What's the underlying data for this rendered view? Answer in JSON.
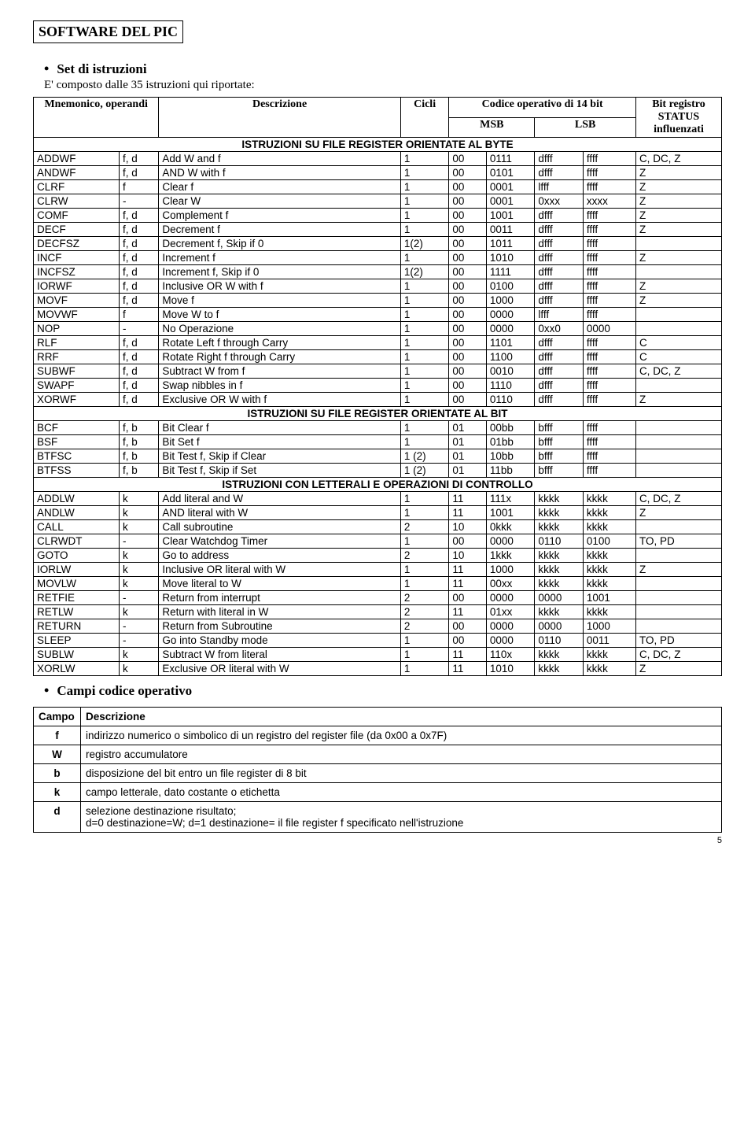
{
  "title": "SOFTWARE DEL PIC",
  "h2_set": "Set di istruzioni",
  "intro": "E' composto dalle 35 istruzioni qui riportate:",
  "hdr": {
    "mnem": "Mnemonico, operandi",
    "desc": "Descrizione",
    "cicli": "Cicli",
    "cod": "Codice operativo di 14 bit",
    "msb": "MSB",
    "lsb": "LSB",
    "stat": "Bit registro STATUS influenzati"
  },
  "sec1": "ISTRUZIONI SU FILE REGISTER ORIENTATE AL BYTE",
  "sec2": "ISTRUZIONI SU FILE REGISTER ORIENTATE AL BIT",
  "sec3": "ISTRUZIONI CON LETTERALI E OPERAZIONI DI CONTROLLO",
  "byte": [
    [
      "ADDWF",
      "f, d",
      "Add W and f",
      "1",
      "00",
      "0111",
      "dfff",
      "ffff",
      "C, DC, Z"
    ],
    [
      "ANDWF",
      "f, d",
      "AND W with f",
      "1",
      "00",
      "0101",
      "dfff",
      "ffff",
      "Z"
    ],
    [
      "CLRF",
      "f",
      "Clear f",
      "1",
      "00",
      "0001",
      "lfff",
      "ffff",
      "Z"
    ],
    [
      "CLRW",
      "-",
      "Clear W",
      "1",
      "00",
      "0001",
      "0xxx",
      "xxxx",
      "Z"
    ],
    [
      "COMF",
      "f, d",
      "Complement f",
      "1",
      "00",
      "1001",
      "dfff",
      "ffff",
      "Z"
    ],
    [
      "DECF",
      "f, d",
      "Decrement f",
      "1",
      "00",
      "0011",
      "dfff",
      "ffff",
      "Z"
    ],
    [
      "DECFSZ",
      "f, d",
      "Decrement f, Skip if 0",
      "1(2)",
      "00",
      "1011",
      "dfff",
      "ffff",
      ""
    ],
    [
      "INCF",
      "f, d",
      "Increment f",
      "1",
      "00",
      "1010",
      "dfff",
      "ffff",
      "Z"
    ],
    [
      "INCFSZ",
      "f, d",
      "Increment f, Skip if 0",
      "1(2)",
      "00",
      "1111",
      "dfff",
      "ffff",
      ""
    ],
    [
      "IORWF",
      "f, d",
      "Inclusive OR W with f",
      "1",
      "00",
      "0100",
      "dfff",
      "ffff",
      "Z"
    ],
    [
      "MOVF",
      "f, d",
      "Move f",
      "1",
      "00",
      "1000",
      "dfff",
      "ffff",
      "Z"
    ],
    [
      "MOVWF",
      "f",
      "Move W to f",
      "1",
      "00",
      "0000",
      "lfff",
      "ffff",
      ""
    ],
    [
      "NOP",
      "-",
      "No Operazione",
      "1",
      "00",
      "0000",
      "0xx0",
      "0000",
      ""
    ],
    [
      "RLF",
      "f, d",
      "Rotate Left f through Carry",
      "1",
      "00",
      "1101",
      "dfff",
      "ffff",
      "C"
    ],
    [
      "RRF",
      "f, d",
      "Rotate Right f through Carry",
      "1",
      "00",
      "1100",
      "dfff",
      "ffff",
      "C"
    ],
    [
      "SUBWF",
      "f, d",
      "Subtract W from f",
      "1",
      "00",
      "0010",
      "dfff",
      "ffff",
      "C, DC, Z"
    ],
    [
      "SWAPF",
      "f, d",
      "Swap nibbles in f",
      "1",
      "00",
      "1110",
      "dfff",
      "ffff",
      ""
    ],
    [
      "XORWF",
      "f, d",
      "Exclusive OR W with f",
      "1",
      "00",
      "0110",
      "dfff",
      "ffff",
      "Z"
    ]
  ],
  "bit": [
    [
      "BCF",
      "f, b",
      "Bit Clear f",
      "1",
      "01",
      "00bb",
      "bfff",
      "ffff",
      ""
    ],
    [
      "BSF",
      "f, b",
      "Bit Set f",
      "1",
      "01",
      "01bb",
      "bfff",
      "ffff",
      ""
    ],
    [
      "BTFSC",
      "f, b",
      "Bit Test f, Skip if Clear",
      "1 (2)",
      "01",
      "10bb",
      "bfff",
      "ffff",
      ""
    ],
    [
      "BTFSS",
      "f, b",
      "Bit Test f, Skip if Set",
      "1 (2)",
      "01",
      "11bb",
      "bfff",
      "ffff",
      ""
    ]
  ],
  "ctrl": [
    [
      "ADDLW",
      "k",
      "Add literal and W",
      "1",
      "11",
      "111x",
      "kkkk",
      "kkkk",
      "C, DC, Z"
    ],
    [
      "ANDLW",
      "k",
      "AND literal with W",
      "1",
      "11",
      "1001",
      "kkkk",
      "kkkk",
      "Z"
    ],
    [
      "CALL",
      "k",
      "Call subroutine",
      "2",
      "10",
      "0kkk",
      "kkkk",
      "kkkk",
      ""
    ],
    [
      "CLRWDT",
      "-",
      "Clear Watchdog Timer",
      "1",
      "00",
      "0000",
      "0110",
      "0100",
      "TO, PD"
    ],
    [
      "GOTO",
      "k",
      "Go to address",
      "2",
      "10",
      "1kkk",
      "kkkk",
      "kkkk",
      ""
    ],
    [
      "IORLW",
      "k",
      "Inclusive OR literal with W",
      "1",
      "11",
      "1000",
      "kkkk",
      "kkkk",
      "Z"
    ],
    [
      "MOVLW",
      "k",
      "Move literal to W",
      "1",
      "11",
      "00xx",
      "kkkk",
      "kkkk",
      ""
    ],
    [
      "RETFIE",
      "-",
      "Return from interrupt",
      "2",
      "00",
      "0000",
      "0000",
      "1001",
      ""
    ],
    [
      "RETLW",
      "k",
      "Return with literal in W",
      "2",
      "11",
      "01xx",
      "kkkk",
      "kkkk",
      ""
    ],
    [
      "RETURN",
      "-",
      "Return from Subroutine",
      "2",
      "00",
      "0000",
      "0000",
      "1000",
      ""
    ],
    [
      "SLEEP",
      "-",
      "Go into Standby mode",
      "1",
      "00",
      "0000",
      "0110",
      "0011",
      "TO, PD"
    ],
    [
      "SUBLW",
      "k",
      "Subtract W from literal",
      "1",
      "11",
      "110x",
      "kkkk",
      "kkkk",
      "C, DC, Z"
    ],
    [
      "XORLW",
      "k",
      "Exclusive OR literal with W",
      "1",
      "11",
      "1010",
      "kkkk",
      "kkkk",
      "Z"
    ]
  ],
  "h2_campi": "Campi codice operativo",
  "campo_hdr": [
    "Campo",
    "Descrizione"
  ],
  "campo": [
    [
      "f",
      "indirizzo  numerico o simbolico di un registro del register file (da 0x00 a 0x7F)"
    ],
    [
      "W",
      "registro accumulatore"
    ],
    [
      "b",
      "disposizione del bit entro un file register di 8 bit"
    ],
    [
      "k",
      "campo letterale, dato costante o etichetta"
    ],
    [
      "d",
      "selezione destinazione risultato;\nd=0 destinazione=W; d=1 destinazione= il file register f specificato nell'istruzione"
    ]
  ],
  "pagenum": "5"
}
